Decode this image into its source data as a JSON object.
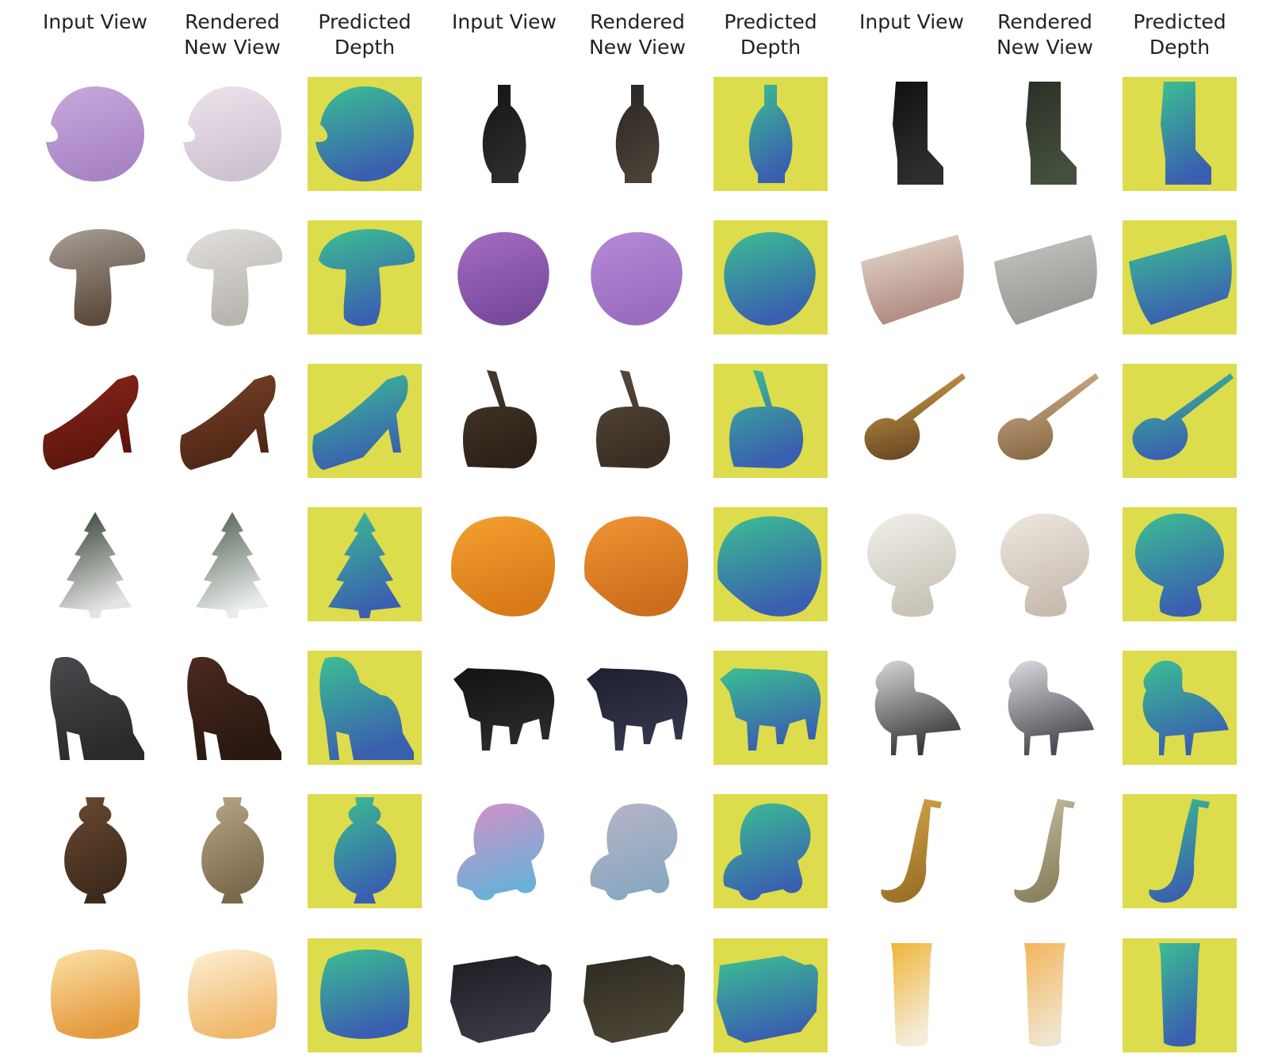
{
  "headers": [
    "Input View",
    "Rendered\nNew View",
    "Predicted\nDepth",
    "Input View",
    "Rendered\nNew View",
    "Predicted\nDepth",
    "Input View",
    "Rendered\nNew View",
    "Predicted\nDepth"
  ],
  "colors": {
    "depth_background": "#dcdc4c",
    "depth_near": "#3a5fb0",
    "depth_far": "#3bbf92"
  },
  "rows": [
    [
      {
        "kind": "input",
        "shape": "sphere",
        "fill": "#c9a9dc",
        "shade": "#a884c4"
      },
      {
        "kind": "render",
        "shape": "sphere",
        "fill": "#ece4ec",
        "shade": "#cfc2d0"
      },
      {
        "kind": "depth",
        "shape": "sphere"
      },
      {
        "kind": "input",
        "shape": "vase",
        "fill": "#141414",
        "shade": "#2c2c2c"
      },
      {
        "kind": "render",
        "shape": "vase",
        "fill": "#2a2622",
        "shade": "#4a4036"
      },
      {
        "kind": "depth",
        "shape": "vase"
      },
      {
        "kind": "input",
        "shape": "boot",
        "fill": "#111111",
        "shade": "#2e2e2e"
      },
      {
        "kind": "render",
        "shape": "boot",
        "fill": "#2a3026",
        "shade": "#44503e"
      },
      {
        "kind": "depth",
        "shape": "boot"
      }
    ],
    [
      {
        "kind": "input",
        "shape": "mushroom",
        "fill": "#a8a098",
        "shade": "#5c4a3c"
      },
      {
        "kind": "render",
        "shape": "mushroom",
        "fill": "#e2e0dc",
        "shade": "#b8b4ae"
      },
      {
        "kind": "depth",
        "shape": "mushroom"
      },
      {
        "kind": "input",
        "shape": "blob",
        "fill": "#a46cc4",
        "shade": "#7a4a9c"
      },
      {
        "kind": "render",
        "shape": "blob",
        "fill": "#b48ad6",
        "shade": "#9a6cc0"
      },
      {
        "kind": "depth",
        "shape": "blob"
      },
      {
        "kind": "input",
        "shape": "pillow",
        "fill": "#e8dcd0",
        "shade": "#b08a80"
      },
      {
        "kind": "render",
        "shape": "pillow",
        "fill": "#c8c6c2",
        "shade": "#9a9894"
      },
      {
        "kind": "depth",
        "shape": "pillow"
      }
    ],
    [
      {
        "kind": "input",
        "shape": "heel",
        "fill": "#8c2418",
        "shade": "#5a160e"
      },
      {
        "kind": "render",
        "shape": "heel",
        "fill": "#7a4228",
        "shade": "#4c2616"
      },
      {
        "kind": "depth",
        "shape": "heel"
      },
      {
        "kind": "input",
        "shape": "bag",
        "fill": "#4a3a2c",
        "shade": "#2c2218"
      },
      {
        "kind": "render",
        "shape": "bag",
        "fill": "#5a4a3c",
        "shade": "#3a2e24"
      },
      {
        "kind": "depth",
        "shape": "bag"
      },
      {
        "kind": "input",
        "shape": "guitar",
        "fill": "#d8a44c",
        "shade": "#6a4a24"
      },
      {
        "kind": "render",
        "shape": "guitar",
        "fill": "#d8b890",
        "shade": "#8a6a48"
      },
      {
        "kind": "depth",
        "shape": "guitar"
      }
    ],
    [
      {
        "kind": "input",
        "shape": "tree",
        "fill": "#2c3a2a",
        "shade": "#e4e4e4"
      },
      {
        "kind": "render",
        "shape": "tree",
        "fill": "#4a5a48",
        "shade": "#e8ecec"
      },
      {
        "kind": "depth",
        "shape": "tree"
      },
      {
        "kind": "input",
        "shape": "orange",
        "fill": "#f4a030",
        "shade": "#d87a18"
      },
      {
        "kind": "render",
        "shape": "orange",
        "fill": "#f09434",
        "shade": "#cc6e1c"
      },
      {
        "kind": "depth",
        "shape": "orange"
      },
      {
        "kind": "input",
        "shape": "puffball",
        "fill": "#f2f0ea",
        "shade": "#c8c4b8"
      },
      {
        "kind": "render",
        "shape": "puffball",
        "fill": "#eee8e0",
        "shade": "#c8bcb0"
      },
      {
        "kind": "depth",
        "shape": "puffball"
      }
    ],
    [
      {
        "kind": "input",
        "shape": "platform",
        "fill": "#4a4a4e",
        "shade": "#2a2a2c"
      },
      {
        "kind": "render",
        "shape": "platform",
        "fill": "#4a2a20",
        "shade": "#2a1812"
      },
      {
        "kind": "depth",
        "shape": "platform"
      },
      {
        "kind": "input",
        "shape": "cow",
        "fill": "#121212",
        "shade": "#2a2a2a"
      },
      {
        "kind": "render",
        "shape": "cow",
        "fill": "#1e2030",
        "shade": "#34364a"
      },
      {
        "kind": "depth",
        "shape": "cow"
      },
      {
        "kind": "input",
        "shape": "bird",
        "fill": "#d8d8d8",
        "shade": "#3a3a3a"
      },
      {
        "kind": "render",
        "shape": "bird",
        "fill": "#dcdce0",
        "shade": "#4a4a52"
      },
      {
        "kind": "depth",
        "shape": "bird"
      }
    ],
    [
      {
        "kind": "input",
        "shape": "amphora",
        "fill": "#6a4a32",
        "shade": "#3e2a1c"
      },
      {
        "kind": "render",
        "shape": "amphora",
        "fill": "#b8a888",
        "shade": "#7a6a4c"
      },
      {
        "kind": "depth",
        "shape": "amphora"
      },
      {
        "kind": "input",
        "shape": "skate",
        "fill": "#d890c8",
        "shade": "#6ab0d8"
      },
      {
        "kind": "render",
        "shape": "skate",
        "fill": "#b8b4c8",
        "shade": "#8aa8c0"
      },
      {
        "kind": "depth",
        "shape": "skate"
      },
      {
        "kind": "input",
        "shape": "sax",
        "fill": "#d8a848",
        "shade": "#9a7028"
      },
      {
        "kind": "render",
        "shape": "sax",
        "fill": "#c8c0a0",
        "shade": "#8a8060"
      },
      {
        "kind": "depth",
        "shape": "sax"
      }
    ],
    [
      {
        "kind": "input",
        "shape": "lamp",
        "fill": "#fbe2a8",
        "shade": "#e49a3c"
      },
      {
        "kind": "render",
        "shape": "lamp",
        "fill": "#fdf0d6",
        "shade": "#f0b86a"
      },
      {
        "kind": "depth",
        "shape": "lamp"
      },
      {
        "kind": "input",
        "shape": "sofa",
        "fill": "#1c1c22",
        "shade": "#3a3a44"
      },
      {
        "kind": "render",
        "shape": "sofa",
        "fill": "#2e2a22",
        "shade": "#4a4434"
      },
      {
        "kind": "depth",
        "shape": "sofa"
      },
      {
        "kind": "input",
        "shape": "glass",
        "fill": "#f0b438",
        "shade": "#f4ecd8"
      },
      {
        "kind": "render",
        "shape": "glass",
        "fill": "#f4b45a",
        "shade": "#f0e4cc"
      },
      {
        "kind": "depth",
        "shape": "glass"
      }
    ]
  ]
}
